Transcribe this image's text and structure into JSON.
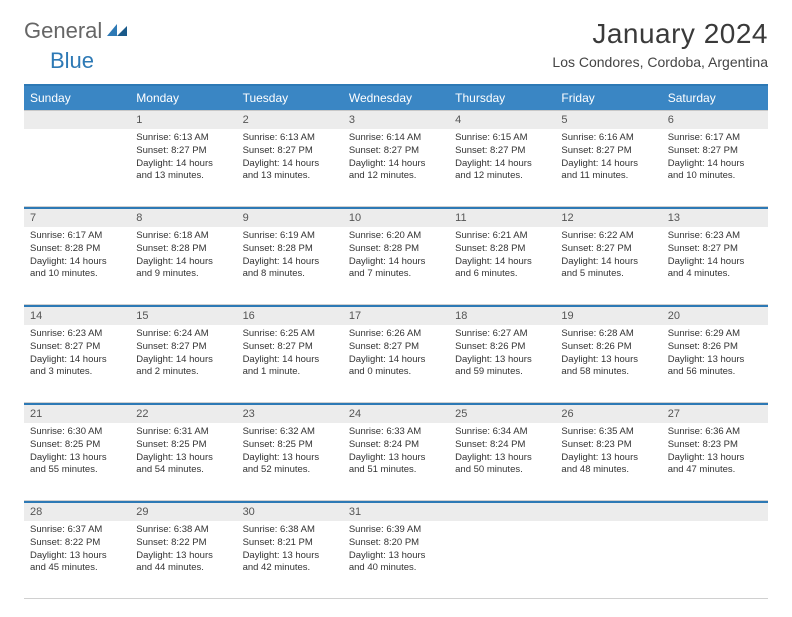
{
  "brand": {
    "text1": "General",
    "text2": "Blue",
    "color_brand": "#2d79b5",
    "color_muted": "#666666"
  },
  "title": "January 2024",
  "location": "Los Condores, Cordoba, Argentina",
  "colors": {
    "header_bg": "#3a86c4",
    "rule": "#2d79b5",
    "daynum_bg": "#ececec",
    "text": "#333333"
  },
  "dow": [
    "Sunday",
    "Monday",
    "Tuesday",
    "Wednesday",
    "Thursday",
    "Friday",
    "Saturday"
  ],
  "weeks": [
    [
      {
        "n": "",
        "lines": []
      },
      {
        "n": "1",
        "lines": [
          "Sunrise: 6:13 AM",
          "Sunset: 8:27 PM",
          "Daylight: 14 hours",
          "and 13 minutes."
        ]
      },
      {
        "n": "2",
        "lines": [
          "Sunrise: 6:13 AM",
          "Sunset: 8:27 PM",
          "Daylight: 14 hours",
          "and 13 minutes."
        ]
      },
      {
        "n": "3",
        "lines": [
          "Sunrise: 6:14 AM",
          "Sunset: 8:27 PM",
          "Daylight: 14 hours",
          "and 12 minutes."
        ]
      },
      {
        "n": "4",
        "lines": [
          "Sunrise: 6:15 AM",
          "Sunset: 8:27 PM",
          "Daylight: 14 hours",
          "and 12 minutes."
        ]
      },
      {
        "n": "5",
        "lines": [
          "Sunrise: 6:16 AM",
          "Sunset: 8:27 PM",
          "Daylight: 14 hours",
          "and 11 minutes."
        ]
      },
      {
        "n": "6",
        "lines": [
          "Sunrise: 6:17 AM",
          "Sunset: 8:27 PM",
          "Daylight: 14 hours",
          "and 10 minutes."
        ]
      }
    ],
    [
      {
        "n": "7",
        "lines": [
          "Sunrise: 6:17 AM",
          "Sunset: 8:28 PM",
          "Daylight: 14 hours",
          "and 10 minutes."
        ]
      },
      {
        "n": "8",
        "lines": [
          "Sunrise: 6:18 AM",
          "Sunset: 8:28 PM",
          "Daylight: 14 hours",
          "and 9 minutes."
        ]
      },
      {
        "n": "9",
        "lines": [
          "Sunrise: 6:19 AM",
          "Sunset: 8:28 PM",
          "Daylight: 14 hours",
          "and 8 minutes."
        ]
      },
      {
        "n": "10",
        "lines": [
          "Sunrise: 6:20 AM",
          "Sunset: 8:28 PM",
          "Daylight: 14 hours",
          "and 7 minutes."
        ]
      },
      {
        "n": "11",
        "lines": [
          "Sunrise: 6:21 AM",
          "Sunset: 8:28 PM",
          "Daylight: 14 hours",
          "and 6 minutes."
        ]
      },
      {
        "n": "12",
        "lines": [
          "Sunrise: 6:22 AM",
          "Sunset: 8:27 PM",
          "Daylight: 14 hours",
          "and 5 minutes."
        ]
      },
      {
        "n": "13",
        "lines": [
          "Sunrise: 6:23 AM",
          "Sunset: 8:27 PM",
          "Daylight: 14 hours",
          "and 4 minutes."
        ]
      }
    ],
    [
      {
        "n": "14",
        "lines": [
          "Sunrise: 6:23 AM",
          "Sunset: 8:27 PM",
          "Daylight: 14 hours",
          "and 3 minutes."
        ]
      },
      {
        "n": "15",
        "lines": [
          "Sunrise: 6:24 AM",
          "Sunset: 8:27 PM",
          "Daylight: 14 hours",
          "and 2 minutes."
        ]
      },
      {
        "n": "16",
        "lines": [
          "Sunrise: 6:25 AM",
          "Sunset: 8:27 PM",
          "Daylight: 14 hours",
          "and 1 minute."
        ]
      },
      {
        "n": "17",
        "lines": [
          "Sunrise: 6:26 AM",
          "Sunset: 8:27 PM",
          "Daylight: 14 hours",
          "and 0 minutes."
        ]
      },
      {
        "n": "18",
        "lines": [
          "Sunrise: 6:27 AM",
          "Sunset: 8:26 PM",
          "Daylight: 13 hours",
          "and 59 minutes."
        ]
      },
      {
        "n": "19",
        "lines": [
          "Sunrise: 6:28 AM",
          "Sunset: 8:26 PM",
          "Daylight: 13 hours",
          "and 58 minutes."
        ]
      },
      {
        "n": "20",
        "lines": [
          "Sunrise: 6:29 AM",
          "Sunset: 8:26 PM",
          "Daylight: 13 hours",
          "and 56 minutes."
        ]
      }
    ],
    [
      {
        "n": "21",
        "lines": [
          "Sunrise: 6:30 AM",
          "Sunset: 8:25 PM",
          "Daylight: 13 hours",
          "and 55 minutes."
        ]
      },
      {
        "n": "22",
        "lines": [
          "Sunrise: 6:31 AM",
          "Sunset: 8:25 PM",
          "Daylight: 13 hours",
          "and 54 minutes."
        ]
      },
      {
        "n": "23",
        "lines": [
          "Sunrise: 6:32 AM",
          "Sunset: 8:25 PM",
          "Daylight: 13 hours",
          "and 52 minutes."
        ]
      },
      {
        "n": "24",
        "lines": [
          "Sunrise: 6:33 AM",
          "Sunset: 8:24 PM",
          "Daylight: 13 hours",
          "and 51 minutes."
        ]
      },
      {
        "n": "25",
        "lines": [
          "Sunrise: 6:34 AM",
          "Sunset: 8:24 PM",
          "Daylight: 13 hours",
          "and 50 minutes."
        ]
      },
      {
        "n": "26",
        "lines": [
          "Sunrise: 6:35 AM",
          "Sunset: 8:23 PM",
          "Daylight: 13 hours",
          "and 48 minutes."
        ]
      },
      {
        "n": "27",
        "lines": [
          "Sunrise: 6:36 AM",
          "Sunset: 8:23 PM",
          "Daylight: 13 hours",
          "and 47 minutes."
        ]
      }
    ],
    [
      {
        "n": "28",
        "lines": [
          "Sunrise: 6:37 AM",
          "Sunset: 8:22 PM",
          "Daylight: 13 hours",
          "and 45 minutes."
        ]
      },
      {
        "n": "29",
        "lines": [
          "Sunrise: 6:38 AM",
          "Sunset: 8:22 PM",
          "Daylight: 13 hours",
          "and 44 minutes."
        ]
      },
      {
        "n": "30",
        "lines": [
          "Sunrise: 6:38 AM",
          "Sunset: 8:21 PM",
          "Daylight: 13 hours",
          "and 42 minutes."
        ]
      },
      {
        "n": "31",
        "lines": [
          "Sunrise: 6:39 AM",
          "Sunset: 8:20 PM",
          "Daylight: 13 hours",
          "and 40 minutes."
        ]
      },
      {
        "n": "",
        "lines": []
      },
      {
        "n": "",
        "lines": []
      },
      {
        "n": "",
        "lines": []
      }
    ]
  ]
}
